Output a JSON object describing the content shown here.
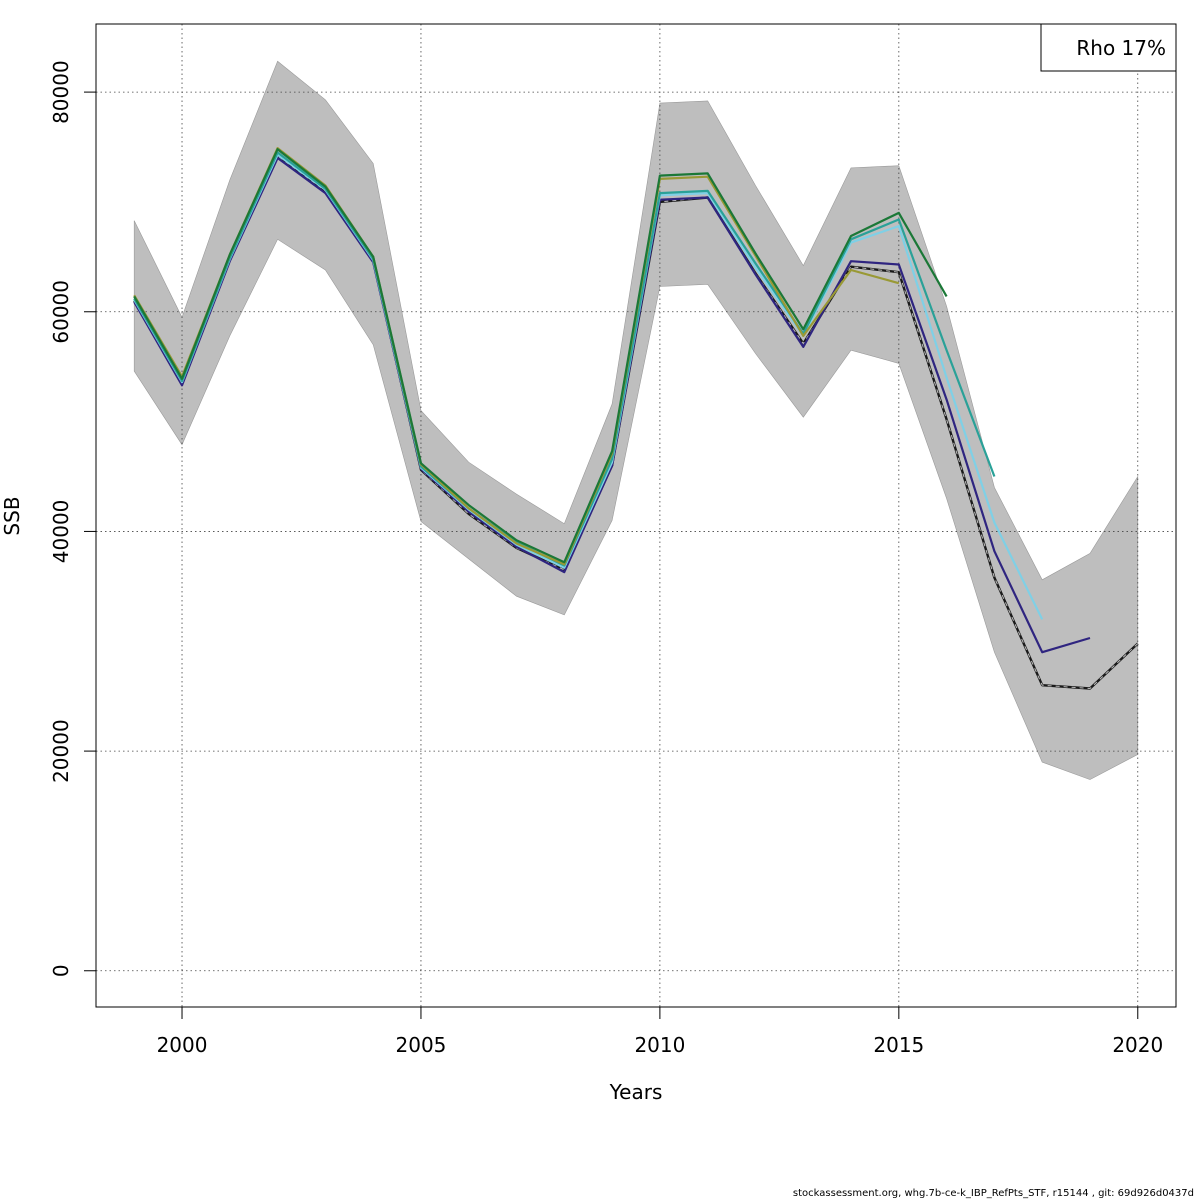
{
  "chart_data": {
    "type": "line",
    "xlabel": "Years",
    "ylabel": "SSB",
    "xlim": [
      1998.2,
      2020.8
    ],
    "ylim": [
      -3300,
      86200
    ],
    "x_ticks": [
      2000,
      2005,
      2010,
      2015,
      2020
    ],
    "y_ticks": [
      0,
      20000,
      40000,
      60000,
      80000
    ],
    "grid": true,
    "legend": {
      "position": "top-right",
      "text": "Rho 17%"
    },
    "confidence_band": {
      "color": "#bebebe",
      "x": [
        1999,
        2000,
        2001,
        2002,
        2003,
        2004,
        2005,
        2006,
        2007,
        2008,
        2009,
        2010,
        2011,
        2012,
        2013,
        2014,
        2015,
        2016,
        2017,
        2018,
        2019,
        2020
      ],
      "upper": [
        68300,
        59500,
        72000,
        82800,
        79300,
        73500,
        51000,
        46300,
        43400,
        40700,
        51600,
        79000,
        79200,
        71500,
        64200,
        73100,
        73300,
        60500,
        44000,
        35600,
        38000,
        45000
      ],
      "lower": [
        54600,
        47900,
        57800,
        66600,
        63800,
        57000,
        40900,
        37500,
        34100,
        32400,
        41000,
        62300,
        62500,
        56200,
        50400,
        56500,
        55300,
        43000,
        29000,
        19000,
        17400,
        19700
      ]
    },
    "series": [
      {
        "color": "#1a1a1a",
        "dashed": true,
        "x": [
          1999,
          2000,
          2001,
          2002,
          2003,
          2004,
          2005,
          2006,
          2007,
          2008,
          2009,
          2010,
          2011,
          2012,
          2013,
          2014,
          2015,
          2016,
          2017,
          2018,
          2019,
          2020
        ],
        "values": [
          61000,
          53500,
          64800,
          74200,
          71000,
          64700,
          45600,
          41600,
          38500,
          36500,
          46000,
          70000,
          70400,
          63500,
          57100,
          64100,
          63600,
          50200,
          35800,
          26000,
          25700,
          29800
        ]
      },
      {
        "color": "#2f2580",
        "x": [
          1999,
          2000,
          2001,
          2002,
          2003,
          2004,
          2005,
          2006,
          2007,
          2008,
          2009,
          2010,
          2011,
          2012,
          2013,
          2014,
          2015,
          2016,
          2017,
          2018,
          2019
        ],
        "values": [
          60900,
          53300,
          64600,
          74000,
          70800,
          64500,
          45700,
          41800,
          38600,
          36300,
          46000,
          70200,
          70400,
          63400,
          56800,
          64600,
          64300,
          52000,
          38200,
          29000,
          30300
        ]
      },
      {
        "color": "#7fd0e6",
        "x": [
          1999,
          2000,
          2001,
          2002,
          2003,
          2004,
          2005,
          2006,
          2007,
          2008,
          2009,
          2010,
          2011,
          2012,
          2013,
          2014,
          2015,
          2016,
          2017,
          2018
        ],
        "values": [
          61100,
          53600,
          64800,
          74300,
          71100,
          64700,
          45800,
          42000,
          38800,
          36700,
          46300,
          70600,
          70800,
          64000,
          57800,
          66300,
          67800,
          54000,
          40800,
          32000
        ]
      },
      {
        "color": "#2aa198",
        "x": [
          1999,
          2000,
          2001,
          2002,
          2003,
          2004,
          2005,
          2006,
          2007,
          2008,
          2009,
          2010,
          2011,
          2012,
          2013,
          2014,
          2015,
          2016,
          2017
        ],
        "values": [
          61200,
          53700,
          64900,
          74500,
          71200,
          64800,
          45900,
          42100,
          39000,
          36900,
          46600,
          70800,
          71000,
          64400,
          58000,
          66600,
          68400,
          56500,
          45000
        ]
      },
      {
        "color": "#999935",
        "x": [
          1999,
          2000,
          2001,
          2002,
          2003,
          2004,
          2005,
          2006,
          2007,
          2008,
          2009,
          2010,
          2011,
          2012,
          2013,
          2014,
          2015
        ],
        "values": [
          61500,
          54100,
          65200,
          74900,
          71500,
          65000,
          46100,
          42100,
          38900,
          37000,
          47100,
          72100,
          72300,
          65100,
          57800,
          63800,
          62600
        ]
      },
      {
        "color": "#1b7837",
        "x": [
          1999,
          2000,
          2001,
          2002,
          2003,
          2004,
          2005,
          2006,
          2007,
          2008,
          2009,
          2010,
          2011,
          2012,
          2013,
          2014,
          2015,
          2016
        ],
        "values": [
          61400,
          53900,
          65200,
          74800,
          71400,
          65000,
          46200,
          42400,
          39200,
          37200,
          47300,
          72400,
          72600,
          65300,
          58400,
          66900,
          69000,
          61400
        ]
      }
    ]
  },
  "footer_text": "stockassessment.org, whg.7b-ce-k_IBP_RefPts_STF, r15144 , git: 69d926d0437d"
}
